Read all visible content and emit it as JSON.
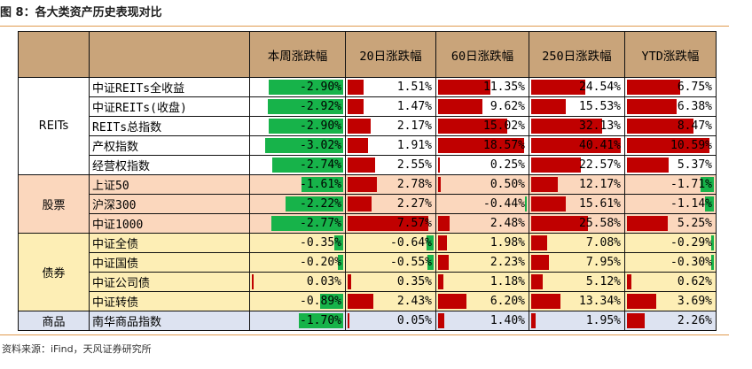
{
  "title": "图 8：各大类资产历史表现对比",
  "source": "资料来源：iFind，天风证券研究所",
  "header": {
    "columns": [
      "本周涨跌幅",
      "20日涨跌幅",
      "60日涨跌幅",
      "250日涨跌幅",
      "YTD涨跌幅"
    ]
  },
  "colors": {
    "positive_bar": "#c00000",
    "negative_bar": "#17b34a",
    "header_bg": "#c9a47a",
    "stock_bg": "#fbd7bd",
    "bond_bg": "#fdeeb5",
    "commodity_bg": "#dde3f1",
    "rule": "#e09a4e"
  },
  "groups": [
    {
      "label": "REITs",
      "cls": "g-reits",
      "rows": [
        {
          "name": "中证REITs全收益",
          "values": [
            "-2.90%",
            "1.51%",
            "11.35%",
            "24.54%",
            "6.75%"
          ]
        },
        {
          "name": "中证REITs(收盘)",
          "values": [
            "-2.92%",
            "1.47%",
            "9.62%",
            "15.53%",
            "6.38%"
          ]
        },
        {
          "name": "REITs总指数",
          "values": [
            "-2.90%",
            "2.17%",
            "15.02%",
            "32.13%",
            "8.47%"
          ]
        },
        {
          "name": "产权指数",
          "values": [
            "-3.02%",
            "1.91%",
            "18.57%",
            "40.41%",
            "10.59%"
          ]
        },
        {
          "name": "经营权指数",
          "values": [
            "-2.74%",
            "2.55%",
            "0.25%",
            "22.57%",
            "5.37%"
          ]
        }
      ]
    },
    {
      "label": "股票",
      "cls": "g-stock",
      "rows": [
        {
          "name": "上证50",
          "values": [
            "-1.61%",
            "2.78%",
            "0.50%",
            "12.17%",
            "-1.71%"
          ]
        },
        {
          "name": "沪深300",
          "values": [
            "-2.22%",
            "2.27%",
            "-0.44%",
            "15.61%",
            "-1.14%"
          ]
        },
        {
          "name": "中证1000",
          "values": [
            "-2.77%",
            "7.57%",
            "2.48%",
            "25.58%",
            "5.25%"
          ]
        }
      ]
    },
    {
      "label": "债券",
      "cls": "g-bond",
      "rows": [
        {
          "name": "中证全债",
          "values": [
            "-0.35%",
            "-0.64%",
            "1.98%",
            "7.08%",
            "-0.29%"
          ]
        },
        {
          "name": "中证国债",
          "values": [
            "-0.20%",
            "-0.55%",
            "2.23%",
            "7.95%",
            "-0.30%"
          ]
        },
        {
          "name": "中证公司债",
          "values": [
            "0.03%",
            "0.35%",
            "1.18%",
            "5.12%",
            "0.62%"
          ]
        },
        {
          "name": "中证转债",
          "values": [
            "-0.89%",
            "2.43%",
            "6.20%",
            "13.34%",
            "3.69%"
          ]
        }
      ]
    },
    {
      "label": "商品",
      "cls": "g-comm",
      "rows": [
        {
          "name": "南华商品指数",
          "values": [
            "-1.70%",
            "0.05%",
            "1.40%",
            "1.95%",
            "2.26%"
          ]
        }
      ]
    }
  ]
}
